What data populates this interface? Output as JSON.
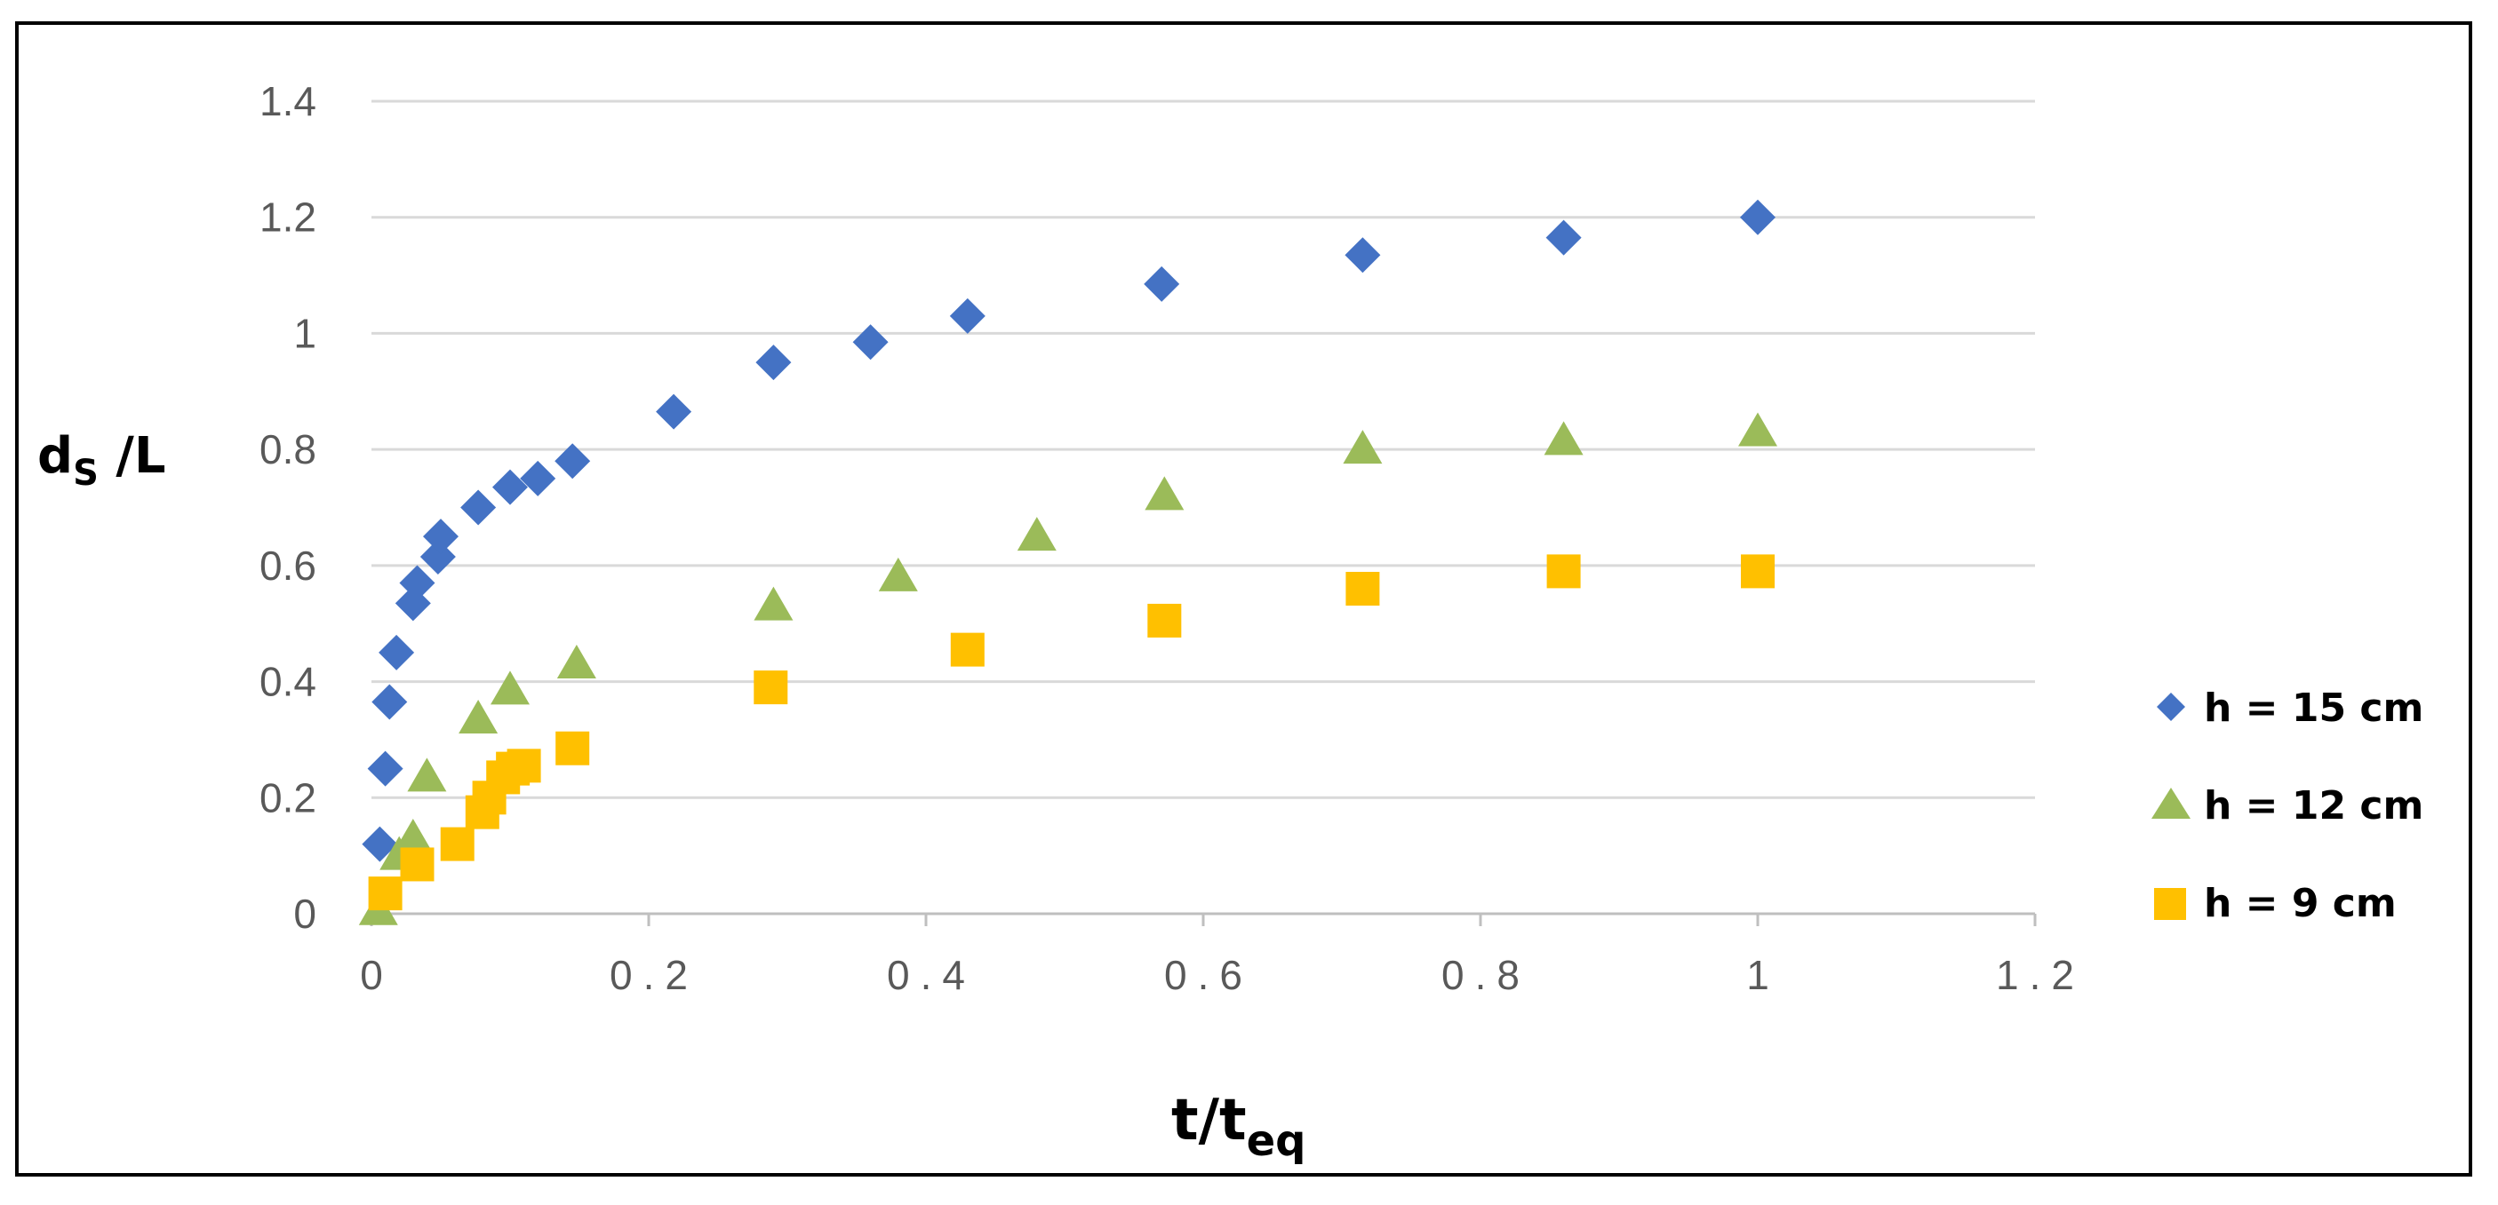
{
  "chart_data": {
    "type": "scatter",
    "title": "",
    "xlabel": {
      "main": "t/t",
      "sub": "eq"
    },
    "ylabel": {
      "main": "d",
      "sub": "S",
      "rest": " /L"
    },
    "xlim": [
      0,
      1.2
    ],
    "ylim": [
      0,
      1.4
    ],
    "xticks": [
      "0",
      "0.2",
      "0.4",
      "0.6",
      "0.8",
      "1",
      "1.2"
    ],
    "yticks": [
      "0",
      "0.2",
      "0.4",
      "0.6",
      "0.8",
      "1",
      "1.2",
      "1.4"
    ],
    "grid": "horizontal",
    "legend_position": "right",
    "series": [
      {
        "name": "h = 15 cm",
        "marker": "diamond",
        "color": "#4472C4",
        "points": [
          [
            0.006,
            0.12
          ],
          [
            0.01,
            0.25
          ],
          [
            0.013,
            0.365
          ],
          [
            0.018,
            0.45
          ],
          [
            0.03,
            0.535
          ],
          [
            0.033,
            0.57
          ],
          [
            0.048,
            0.615
          ],
          [
            0.05,
            0.65
          ],
          [
            0.077,
            0.7
          ],
          [
            0.1,
            0.735
          ],
          [
            0.12,
            0.75
          ],
          [
            0.145,
            0.78
          ],
          [
            0.218,
            0.865
          ],
          [
            0.29,
            0.95
          ],
          [
            0.36,
            0.985
          ],
          [
            0.43,
            1.03
          ],
          [
            0.57,
            1.085
          ],
          [
            0.715,
            1.135
          ],
          [
            0.86,
            1.165
          ],
          [
            1.0,
            1.2
          ]
        ]
      },
      {
        "name": "h = 12 cm",
        "marker": "triangle",
        "color": "#9BBB59",
        "points": [
          [
            0.005,
            0.005
          ],
          [
            0.02,
            0.1
          ],
          [
            0.03,
            0.13
          ],
          [
            0.04,
            0.235
          ],
          [
            0.077,
            0.335
          ],
          [
            0.1,
            0.385
          ],
          [
            0.148,
            0.43
          ],
          [
            0.29,
            0.53
          ],
          [
            0.38,
            0.58
          ],
          [
            0.48,
            0.65
          ],
          [
            0.572,
            0.72
          ],
          [
            0.715,
            0.8
          ],
          [
            0.86,
            0.815
          ],
          [
            1.0,
            0.83
          ]
        ]
      },
      {
        "name": "h = 9 cm",
        "marker": "square",
        "color": "#FFC000",
        "points": [
          [
            0.01,
            0.035
          ],
          [
            0.033,
            0.085
          ],
          [
            0.062,
            0.12
          ],
          [
            0.08,
            0.175
          ],
          [
            0.085,
            0.2
          ],
          [
            0.095,
            0.235
          ],
          [
            0.102,
            0.25
          ],
          [
            0.11,
            0.255
          ],
          [
            0.145,
            0.285
          ],
          [
            0.288,
            0.39
          ],
          [
            0.43,
            0.455
          ],
          [
            0.572,
            0.505
          ],
          [
            0.715,
            0.56
          ],
          [
            0.86,
            0.59
          ],
          [
            1.0,
            0.59
          ]
        ]
      }
    ]
  }
}
